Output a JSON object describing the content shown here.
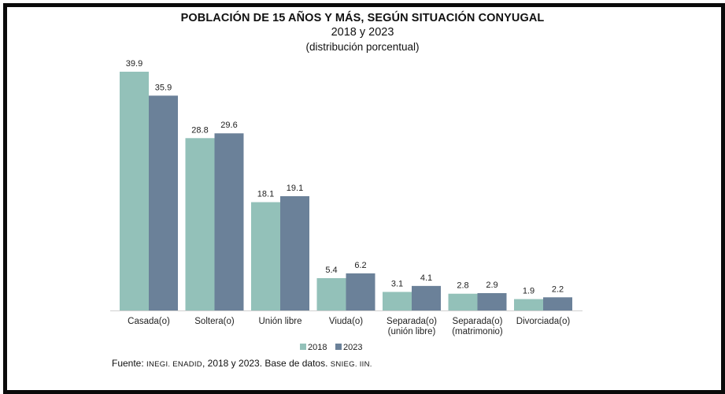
{
  "chart_data": {
    "type": "bar",
    "title": "POBLACIÓN DE 15 AÑOS Y MÁS, SEGÚN SITUACIÓN CONYUGAL",
    "subtitle": "2018 y 2023",
    "subtitle2": "(distribución porcentual)",
    "categories": [
      [
        "Casada(o)"
      ],
      [
        "Soltera(o)"
      ],
      [
        "Unión libre"
      ],
      [
        "Viuda(o)"
      ],
      [
        "Separada(o)",
        "(unión libre)"
      ],
      [
        "Separada(o)",
        "(matrimonio)"
      ],
      [
        "Divorciada(o)"
      ]
    ],
    "series": [
      {
        "name": "2018",
        "color": "#93c1b9",
        "values": [
          39.9,
          28.8,
          18.1,
          5.4,
          3.1,
          2.8,
          1.9
        ]
      },
      {
        "name": "2023",
        "color": "#6b8199",
        "values": [
          35.9,
          29.6,
          19.1,
          6.2,
          4.1,
          2.9,
          2.2
        ]
      }
    ],
    "ylim": [
      0,
      40
    ],
    "grid": false,
    "legend": "bottom-right"
  },
  "source": {
    "prefix": "Fuente: ",
    "inst": "INEGI. ENADID",
    "mid": ", 2018 y 2023. Base de datos. ",
    "db": "SNIEG. IIN."
  }
}
